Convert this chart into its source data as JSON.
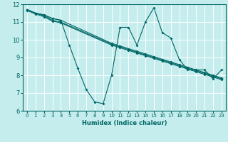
{
  "title": "",
  "xlabel": "Humidex (Indice chaleur)",
  "ylabel": "",
  "xlim": [
    -0.5,
    23.5
  ],
  "ylim": [
    6,
    12
  ],
  "yticks": [
    6,
    7,
    8,
    9,
    10,
    11,
    12
  ],
  "xticks": [
    0,
    1,
    2,
    3,
    4,
    5,
    6,
    7,
    8,
    9,
    10,
    11,
    12,
    13,
    14,
    15,
    16,
    17,
    18,
    19,
    20,
    21,
    22,
    23
  ],
  "bg_color": "#c6eded",
  "grid_color": "#ffffff",
  "line_color": "#006666",
  "lines": [
    {
      "x": [
        0,
        1,
        2,
        3,
        4,
        5,
        6,
        7,
        8,
        9,
        10,
        11,
        12,
        13,
        14,
        15,
        16,
        17,
        18,
        19,
        20,
        21,
        22,
        23
      ],
      "y": [
        11.7,
        11.5,
        11.4,
        11.2,
        11.1,
        9.7,
        8.4,
        7.2,
        6.5,
        6.4,
        8.0,
        10.7,
        10.7,
        9.7,
        11.0,
        11.8,
        10.4,
        10.1,
        8.9,
        8.3,
        8.3,
        8.3,
        7.8,
        8.3
      ]
    },
    {
      "x": [
        0,
        1,
        2,
        3,
        4,
        10,
        11,
        12,
        13,
        14,
        15,
        16,
        17,
        18,
        19,
        20,
        21,
        22,
        23
      ],
      "y": [
        11.7,
        11.5,
        11.4,
        11.2,
        11.1,
        9.8,
        9.65,
        9.5,
        9.35,
        9.2,
        9.05,
        8.9,
        8.75,
        8.6,
        8.45,
        8.3,
        8.15,
        8.0,
        7.85
      ]
    },
    {
      "x": [
        0,
        1,
        2,
        3,
        4,
        10,
        11,
        12,
        13,
        14,
        15,
        16,
        17,
        18,
        19,
        20,
        21,
        22,
        23
      ],
      "y": [
        11.7,
        11.5,
        11.35,
        11.1,
        11.0,
        9.75,
        9.6,
        9.45,
        9.3,
        9.15,
        9.0,
        8.85,
        8.7,
        8.55,
        8.4,
        8.25,
        8.1,
        7.95,
        7.8
      ]
    },
    {
      "x": [
        0,
        1,
        2,
        3,
        4,
        10,
        11,
        12,
        13,
        14,
        15,
        16,
        17,
        18,
        19,
        20,
        21,
        22,
        23
      ],
      "y": [
        11.65,
        11.45,
        11.3,
        11.05,
        10.95,
        9.7,
        9.55,
        9.4,
        9.25,
        9.1,
        8.95,
        8.8,
        8.65,
        8.5,
        8.35,
        8.2,
        8.05,
        7.9,
        7.75
      ]
    }
  ]
}
